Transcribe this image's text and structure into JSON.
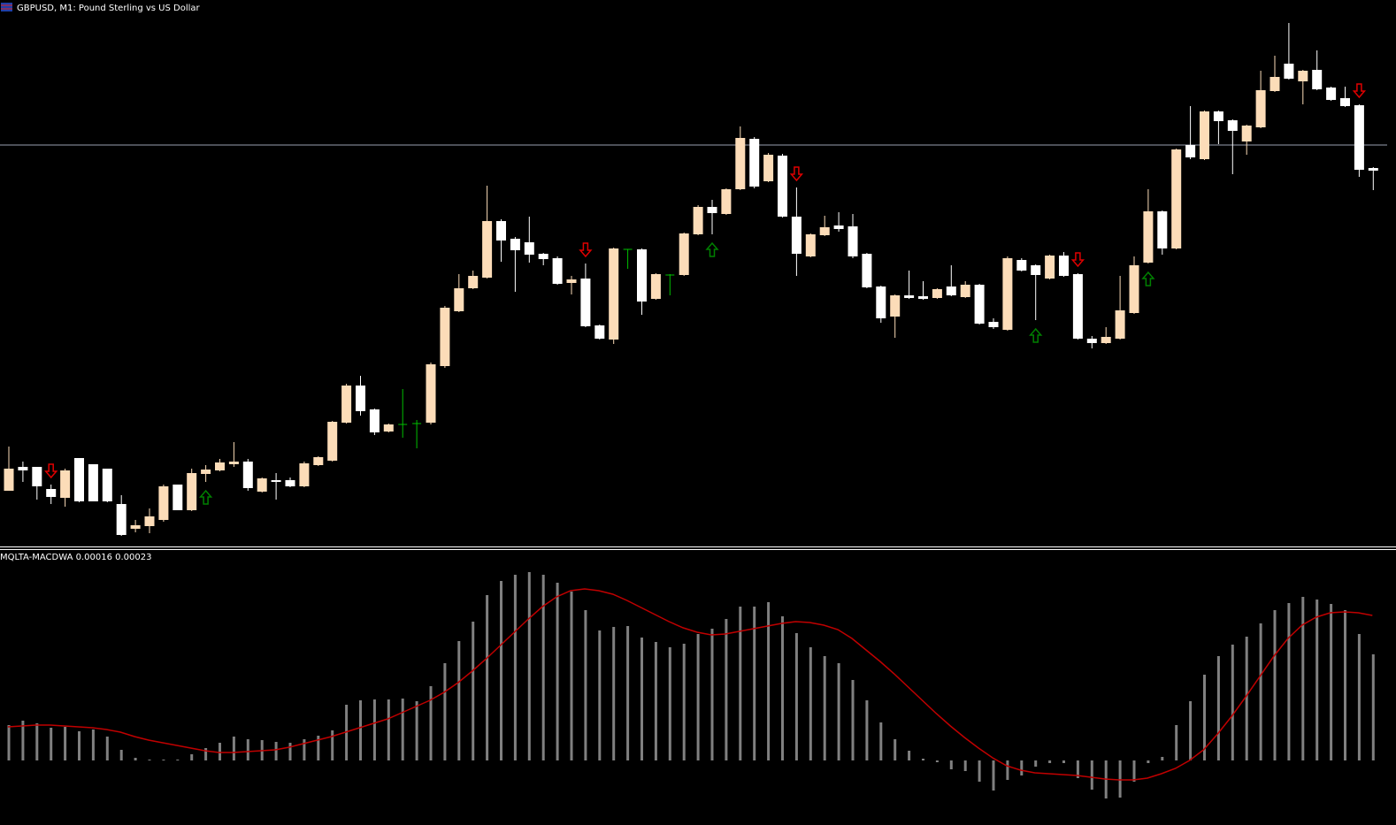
{
  "chart_data": [
    {
      "type": "candlestick",
      "title": "GBPUSD, M1:  Pound Sterling vs US Dollar",
      "ylim": [
        380,
        1000
      ],
      "hline": 836,
      "bull_color": "#fcdcb8",
      "bear_color": "#ffffff",
      "doji_color": "#00c000",
      "signals": {
        "up": [
          14,
          50,
          73,
          81
        ],
        "down": [
          3,
          41,
          56,
          76,
          96
        ],
        "up_color": "#008000",
        "down_color": "#e00000"
      },
      "ohlc": [
        [
          445,
          495,
          445,
          470
        ],
        [
          472,
          478,
          455,
          468
        ],
        [
          472,
          472,
          435,
          450
        ],
        [
          447,
          452,
          430,
          438
        ],
        [
          437,
          470,
          427,
          468
        ],
        [
          482,
          482,
          432,
          433
        ],
        [
          475,
          475,
          433,
          433
        ],
        [
          470,
          470,
          432,
          433
        ],
        [
          430,
          440,
          394,
          395
        ],
        [
          402,
          412,
          398,
          406
        ],
        [
          405,
          425,
          397,
          416
        ],
        [
          412,
          452,
          410,
          450
        ],
        [
          452,
          452,
          423,
          423
        ],
        [
          423,
          470,
          422,
          465
        ],
        [
          464,
          474,
          455,
          469
        ],
        [
          468,
          481,
          467,
          477
        ],
        [
          475,
          500,
          472,
          478
        ],
        [
          478,
          481,
          445,
          448
        ],
        [
          444,
          460,
          443,
          459
        ],
        [
          457,
          465,
          435,
          455
        ],
        [
          457,
          460,
          449,
          450
        ],
        [
          450,
          478,
          449,
          476
        ],
        [
          474,
          484,
          473,
          483
        ],
        [
          479,
          524,
          478,
          523
        ],
        [
          522,
          566,
          521,
          564
        ],
        [
          564,
          575,
          530,
          535
        ],
        [
          537,
          538,
          508,
          511
        ],
        [
          512,
          521,
          511,
          520
        ],
        [
          520,
          560,
          505,
          520
        ],
        [
          521,
          525,
          493,
          521
        ],
        [
          522,
          590,
          520,
          588
        ],
        [
          586,
          654,
          584,
          652
        ],
        [
          648,
          690,
          647,
          674
        ],
        [
          674,
          694,
          673,
          688
        ],
        [
          686,
          790,
          685,
          750
        ],
        [
          750,
          752,
          704,
          728
        ],
        [
          730,
          732,
          670,
          717
        ],
        [
          726,
          755,
          703,
          712
        ],
        [
          713,
          714,
          700,
          707
        ],
        [
          708,
          710,
          678,
          679
        ],
        [
          680,
          688,
          667,
          684
        ],
        [
          685,
          702,
          630,
          631
        ],
        [
          632,
          633,
          616,
          617
        ],
        [
          616,
          720,
          611,
          719
        ],
        [
          718,
          718,
          696,
          718
        ],
        [
          718,
          719,
          644,
          659
        ],
        [
          662,
          691,
          661,
          690
        ],
        [
          689,
          690,
          666,
          689
        ],
        [
          689,
          737,
          688,
          736
        ],
        [
          735,
          768,
          734,
          766
        ],
        [
          766,
          774,
          735,
          759
        ],
        [
          758,
          787,
          757,
          786
        ],
        [
          786,
          857,
          785,
          844
        ],
        [
          843,
          845,
          787,
          789
        ],
        [
          795,
          827,
          794,
          825
        ],
        [
          824,
          826,
          754,
          755
        ],
        [
          755,
          788,
          688,
          713
        ],
        [
          710,
          736,
          709,
          735
        ],
        [
          734,
          756,
          733,
          743
        ],
        [
          745,
          760,
          738,
          741
        ],
        [
          744,
          758,
          708,
          710
        ],
        [
          713,
          714,
          674,
          675
        ],
        [
          676,
          677,
          635,
          640
        ],
        [
          642,
          667,
          618,
          666
        ],
        [
          666,
          694,
          662,
          663
        ],
        [
          665,
          682,
          661,
          662
        ],
        [
          663,
          674,
          662,
          673
        ],
        [
          676,
          700,
          665,
          666
        ],
        [
          664,
          682,
          663,
          678
        ],
        [
          678,
          679,
          633,
          634
        ],
        [
          636,
          640,
          628,
          630
        ],
        [
          627,
          710,
          626,
          708
        ],
        [
          706,
          708,
          693,
          694
        ],
        [
          700,
          701,
          638,
          689
        ],
        [
          685,
          712,
          684,
          711
        ],
        [
          711,
          715,
          687,
          688
        ],
        [
          690,
          691,
          616,
          617
        ],
        [
          617,
          620,
          606,
          612
        ],
        [
          612,
          630,
          611,
          619
        ],
        [
          617,
          688,
          616,
          649
        ],
        [
          646,
          710,
          645,
          700
        ],
        [
          703,
          786,
          702,
          761
        ],
        [
          761,
          762,
          712,
          719
        ],
        [
          719,
          832,
          718,
          831
        ],
        [
          836,
          880,
          820,
          822
        ],
        [
          820,
          875,
          819,
          874
        ],
        [
          874,
          875,
          837,
          863
        ],
        [
          864,
          865,
          803,
          852
        ],
        [
          840,
          859,
          825,
          858
        ],
        [
          856,
          920,
          855,
          898
        ],
        [
          897,
          937,
          896,
          913
        ],
        [
          928,
          974,
          910,
          911
        ],
        [
          908,
          921,
          882,
          920
        ],
        [
          921,
          943,
          898,
          899
        ],
        [
          901,
          902,
          886,
          887
        ],
        [
          889,
          902,
          879,
          880
        ],
        [
          881,
          882,
          800,
          808
        ],
        [
          810,
          811,
          785,
          807
        ]
      ]
    },
    {
      "type": "macd",
      "title": "MQLTA-MACDWA 0.00016 0.00023",
      "ylim": [
        -73,
        238
      ],
      "color": "#808080",
      "line_color": "#c00000",
      "values": [
        40,
        45,
        42,
        37,
        38,
        33,
        35,
        27,
        12,
        3,
        1,
        1,
        1,
        7,
        14,
        20,
        27,
        24,
        23,
        21,
        20,
        24,
        28,
        34,
        63,
        68,
        69,
        69,
        70,
        67,
        84,
        110,
        135,
        157,
        187,
        203,
        210,
        213,
        210,
        201,
        191,
        170,
        147,
        151,
        152,
        139,
        134,
        128,
        132,
        143,
        149,
        160,
        174,
        174,
        179,
        163,
        144,
        128,
        118,
        110,
        91,
        68,
        43,
        24,
        11,
        2,
        -2,
        -10,
        -12,
        -24,
        -34,
        -22,
        -17,
        -7,
        -3,
        -3,
        -20,
        -33,
        -43,
        -42,
        -24,
        -3,
        4,
        40,
        67,
        97,
        118,
        131,
        140,
        155,
        170,
        178,
        185,
        182,
        177,
        170,
        143,
        120
      ],
      "line_values": [
        38,
        39,
        40,
        40,
        39,
        38,
        37,
        35,
        32,
        27,
        23,
        20,
        17,
        14,
        11,
        9,
        9,
        10,
        11,
        12,
        15,
        19,
        23,
        27,
        32,
        37,
        42,
        47,
        54,
        61,
        68,
        77,
        88,
        101,
        115,
        130,
        145,
        160,
        174,
        185,
        192,
        194,
        192,
        188,
        181,
        173,
        165,
        157,
        150,
        145,
        142,
        143,
        146,
        149,
        152,
        155,
        157,
        156,
        153,
        148,
        138,
        125,
        112,
        98,
        83,
        68,
        53,
        39,
        26,
        14,
        3,
        -6,
        -11,
        -14,
        -15,
        -16,
        -17,
        -19,
        -21,
        -22,
        -22,
        -20,
        -15,
        -9,
        0,
        12,
        30,
        50,
        72,
        95,
        118,
        138,
        153,
        162,
        167,
        168,
        167,
        164
      ]
    }
  ]
}
